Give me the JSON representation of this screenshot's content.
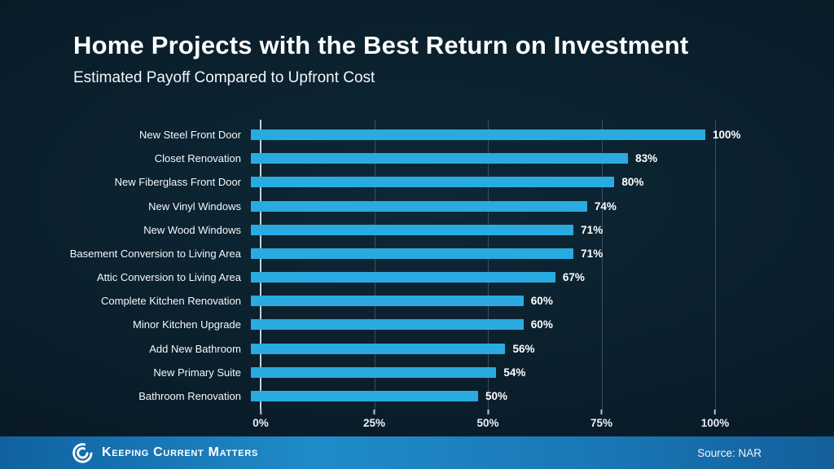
{
  "header": {
    "title": "Home Projects with the Best Return on Investment",
    "subtitle": "Estimated Payoff Compared to Upfront Cost"
  },
  "chart_data": {
    "type": "bar",
    "orientation": "horizontal",
    "title": "Home Projects with the Best Return on Investment",
    "subtitle": "Estimated Payoff Compared to Upfront Cost",
    "categories": [
      "New Steel Front Door",
      "Closet Renovation",
      "New Fiberglass Front Door",
      "New Vinyl Windows",
      "New Wood Windows",
      "Basement Conversion to Living Area",
      "Attic Conversion to Living Area",
      "Complete Kitchen Renovation",
      "Minor Kitchen Upgrade",
      "Add New Bathroom",
      "New Primary Suite",
      "Bathroom Renovation"
    ],
    "values": [
      100,
      83,
      80,
      74,
      71,
      71,
      67,
      60,
      60,
      56,
      54,
      50
    ],
    "value_labels": [
      "100%",
      "83%",
      "80%",
      "74%",
      "71%",
      "71%",
      "67%",
      "60%",
      "60%",
      "56%",
      "54%",
      "50%"
    ],
    "x_ticks": [
      "0%",
      "25%",
      "50%",
      "75%",
      "100%"
    ],
    "x_tick_values": [
      0,
      25,
      50,
      75,
      100
    ],
    "xlim": [
      0,
      100
    ],
    "xlabel": "",
    "ylabel": "",
    "legend": "none",
    "grid": "vertical",
    "bar_color": "#29abe2",
    "background_color": "#0a1c29",
    "gridline_color": "#54707f",
    "axis_line_color": "#e6f2f8"
  },
  "footer": {
    "brand": "Keeping Current Matters",
    "source": "Source: NAR",
    "bar_color": "#1b7fc0",
    "logo": "kcm-swirl-icon"
  }
}
